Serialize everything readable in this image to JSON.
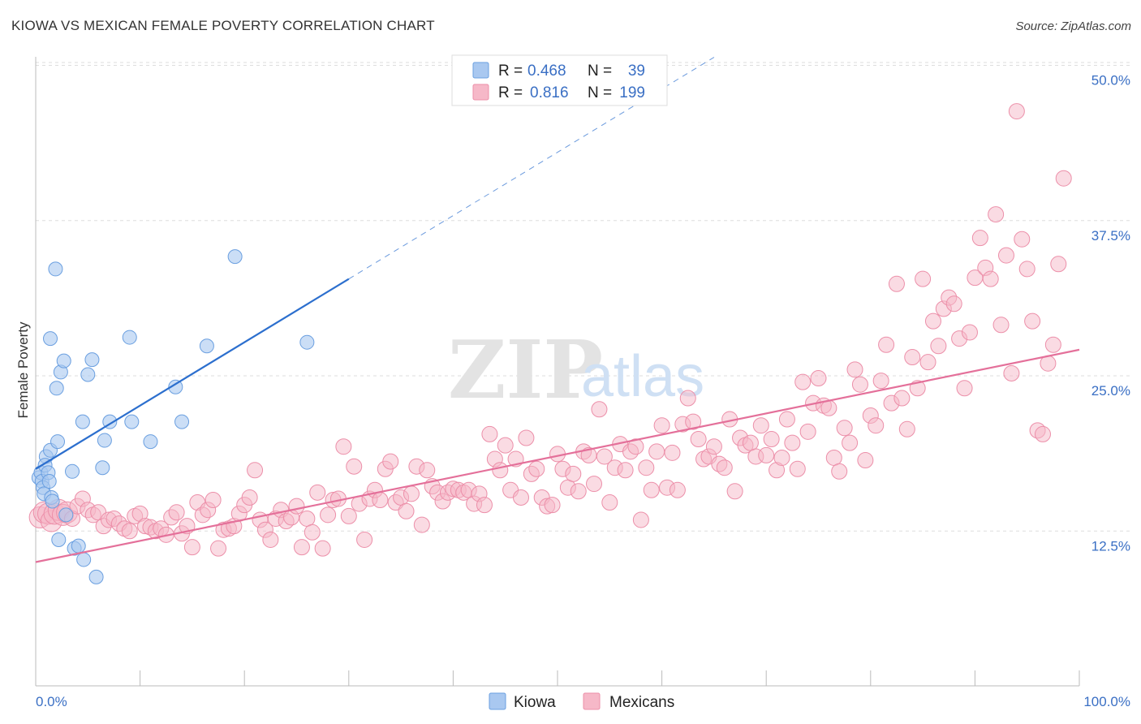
{
  "title": "KIOWA VS MEXICAN FEMALE POVERTY CORRELATION CHART",
  "source": "Source: ZipAtlas.com",
  "watermark": {
    "zip": "ZIP",
    "atlas": "atlas"
  },
  "colors": {
    "kiowa_fill": "#a9c8f0",
    "kiowa_stroke": "#6a9fe0",
    "kiowa_line": "#2c6fce",
    "mex_fill": "#f6b8c8",
    "mex_stroke": "#ec8fa9",
    "mex_line": "#e4709a",
    "axis_label": "#3a6fc4",
    "grid": "#dddddd"
  },
  "legend_top": [
    {
      "series": "Kiowa",
      "r_label": "R =",
      "r_value": "0.468",
      "n_label": "N =",
      "n_value": "39"
    },
    {
      "series": "Mexicans",
      "r_label": "R =",
      "r_value": "0.816",
      "n_label": "N =",
      "n_value": "199"
    }
  ],
  "legend_bottom": [
    "Kiowa",
    "Mexicans"
  ],
  "chart_data": {
    "type": "scatter",
    "title": "KIOWA VS MEXICAN FEMALE POVERTY CORRELATION CHART",
    "xlabel": "",
    "ylabel": "Female Poverty",
    "xlim": [
      0,
      100
    ],
    "ylim": [
      0,
      52
    ],
    "x_tick_labels": [
      "0.0%",
      "100.0%"
    ],
    "y_ticks": [
      12.5,
      25.0,
      37.5,
      50.0
    ],
    "y_tick_labels": [
      "12.5%",
      "25.0%",
      "37.5%",
      "50.0%"
    ],
    "grid": true,
    "legend_placement": "top-center",
    "series": [
      {
        "name": "Kiowa",
        "trend": {
          "x0": 0,
          "y0": 17.5,
          "x1": 30,
          "y1": 32.8,
          "dash_to_x": 65
        },
        "points": [
          [
            0.3,
            16.8
          ],
          [
            0.5,
            17.2
          ],
          [
            0.6,
            16.5
          ],
          [
            0.7,
            16.0
          ],
          [
            0.8,
            15.5
          ],
          [
            1.0,
            18.5
          ],
          [
            0.9,
            17.8
          ],
          [
            1.2,
            17.2
          ],
          [
            1.3,
            16.5
          ],
          [
            1.4,
            19.0
          ],
          [
            1.5,
            15.2
          ],
          [
            1.6,
            14.9
          ],
          [
            1.4,
            28.0
          ],
          [
            1.9,
            33.6
          ],
          [
            2.0,
            24.0
          ],
          [
            2.1,
            19.7
          ],
          [
            2.2,
            11.8
          ],
          [
            2.4,
            25.3
          ],
          [
            2.7,
            26.2
          ],
          [
            2.9,
            13.8
          ],
          [
            3.5,
            17.3
          ],
          [
            3.7,
            11.1
          ],
          [
            4.1,
            11.3
          ],
          [
            4.6,
            10.2
          ],
          [
            4.5,
            21.3
          ],
          [
            5.0,
            25.1
          ],
          [
            5.4,
            26.3
          ],
          [
            5.8,
            8.8
          ],
          [
            6.4,
            17.6
          ],
          [
            6.6,
            19.8
          ],
          [
            7.1,
            21.3
          ],
          [
            9.0,
            28.1
          ],
          [
            9.2,
            21.3
          ],
          [
            11.0,
            19.7
          ],
          [
            13.4,
            24.1
          ],
          [
            14.0,
            21.3
          ],
          [
            16.4,
            27.4
          ],
          [
            19.1,
            34.6
          ],
          [
            26.0,
            27.7
          ]
        ]
      },
      {
        "name": "Mexicans",
        "trend": {
          "x0": 0,
          "y0": 10.0,
          "x1": 100,
          "y1": 27.1
        },
        "points": [
          [
            0.4,
            13.6
          ],
          [
            0.8,
            14.0
          ],
          [
            1.2,
            13.9
          ],
          [
            1.5,
            13.3
          ],
          [
            1.8,
            13.9
          ],
          [
            2.2,
            14.2
          ],
          [
            2.6,
            13.8
          ],
          [
            3.0,
            14.0
          ],
          [
            3.5,
            13.5
          ],
          [
            4.0,
            14.5
          ],
          [
            4.5,
            15.1
          ],
          [
            5.0,
            14.2
          ],
          [
            5.5,
            13.8
          ],
          [
            6.0,
            14.0
          ],
          [
            6.5,
            12.9
          ],
          [
            7.0,
            13.4
          ],
          [
            7.5,
            13.5
          ],
          [
            8.0,
            13.1
          ],
          [
            8.5,
            12.7
          ],
          [
            9.0,
            12.5
          ],
          [
            9.5,
            13.7
          ],
          [
            10.0,
            13.9
          ],
          [
            10.5,
            12.9
          ],
          [
            11.0,
            12.8
          ],
          [
            11.5,
            12.5
          ],
          [
            12.0,
            12.7
          ],
          [
            12.5,
            12.2
          ],
          [
            13.0,
            13.6
          ],
          [
            13.5,
            14.0
          ],
          [
            14.0,
            12.3
          ],
          [
            14.5,
            12.9
          ],
          [
            15.0,
            11.2
          ],
          [
            15.5,
            14.8
          ],
          [
            16.0,
            13.8
          ],
          [
            16.5,
            14.2
          ],
          [
            17.0,
            15.0
          ],
          [
            17.5,
            11.1
          ],
          [
            18.0,
            12.6
          ],
          [
            18.5,
            12.7
          ],
          [
            19.0,
            12.9
          ],
          [
            19.5,
            13.9
          ],
          [
            20.0,
            14.6
          ],
          [
            20.5,
            15.2
          ],
          [
            21.0,
            17.4
          ],
          [
            21.5,
            13.4
          ],
          [
            22.0,
            12.6
          ],
          [
            22.5,
            11.8
          ],
          [
            23.0,
            13.5
          ],
          [
            23.5,
            14.2
          ],
          [
            24.0,
            13.3
          ],
          [
            24.5,
            13.6
          ],
          [
            25.0,
            14.5
          ],
          [
            25.5,
            11.2
          ],
          [
            26.0,
            13.5
          ],
          [
            26.5,
            12.4
          ],
          [
            27.0,
            15.6
          ],
          [
            27.5,
            11.1
          ],
          [
            28.0,
            13.8
          ],
          [
            28.5,
            15.0
          ],
          [
            29.0,
            15.1
          ],
          [
            29.5,
            19.3
          ],
          [
            30.0,
            13.7
          ],
          [
            30.5,
            17.7
          ],
          [
            31.0,
            14.7
          ],
          [
            31.5,
            11.8
          ],
          [
            32.0,
            15.1
          ],
          [
            32.5,
            15.8
          ],
          [
            33.0,
            15.0
          ],
          [
            33.5,
            17.5
          ],
          [
            34.0,
            18.1
          ],
          [
            34.5,
            14.8
          ],
          [
            35.0,
            15.2
          ],
          [
            35.5,
            14.1
          ],
          [
            36.0,
            15.5
          ],
          [
            36.5,
            17.7
          ],
          [
            37.0,
            13.0
          ],
          [
            37.5,
            17.4
          ],
          [
            38.0,
            16.1
          ],
          [
            38.5,
            15.6
          ],
          [
            39.0,
            14.9
          ],
          [
            39.5,
            15.6
          ],
          [
            40.0,
            15.9
          ],
          [
            40.5,
            15.8
          ],
          [
            41.0,
            15.6
          ],
          [
            41.5,
            15.8
          ],
          [
            42.0,
            14.7
          ],
          [
            42.5,
            15.5
          ],
          [
            43.0,
            14.6
          ],
          [
            43.5,
            20.3
          ],
          [
            44.0,
            18.3
          ],
          [
            44.5,
            17.4
          ],
          [
            45.0,
            19.4
          ],
          [
            45.5,
            15.8
          ],
          [
            46.0,
            18.3
          ],
          [
            46.5,
            15.2
          ],
          [
            47.0,
            20.0
          ],
          [
            47.5,
            17.1
          ],
          [
            48.0,
            17.5
          ],
          [
            48.5,
            15.2
          ],
          [
            49.0,
            14.5
          ],
          [
            49.5,
            14.6
          ],
          [
            50.0,
            18.7
          ],
          [
            50.5,
            17.5
          ],
          [
            51.0,
            16.0
          ],
          [
            51.5,
            17.1
          ],
          [
            52.0,
            15.7
          ],
          [
            52.5,
            18.9
          ],
          [
            53.0,
            18.6
          ],
          [
            53.5,
            16.3
          ],
          [
            54.0,
            22.3
          ],
          [
            54.5,
            18.5
          ],
          [
            55.0,
            14.8
          ],
          [
            55.5,
            17.6
          ],
          [
            56.0,
            19.5
          ],
          [
            56.5,
            17.4
          ],
          [
            57.0,
            18.9
          ],
          [
            57.5,
            19.3
          ],
          [
            58.0,
            13.4
          ],
          [
            58.5,
            17.6
          ],
          [
            59.0,
            15.8
          ],
          [
            59.5,
            18.9
          ],
          [
            60.0,
            21.0
          ],
          [
            60.5,
            16.0
          ],
          [
            61.0,
            18.8
          ],
          [
            61.5,
            15.8
          ],
          [
            62.0,
            21.1
          ],
          [
            62.5,
            23.2
          ],
          [
            63.0,
            21.3
          ],
          [
            63.5,
            19.9
          ],
          [
            64.0,
            18.3
          ],
          [
            64.5,
            18.5
          ],
          [
            65.0,
            19.3
          ],
          [
            65.5,
            17.9
          ],
          [
            66.0,
            17.6
          ],
          [
            66.5,
            21.5
          ],
          [
            67.0,
            15.7
          ],
          [
            67.5,
            20.0
          ],
          [
            68.0,
            19.4
          ],
          [
            68.5,
            19.6
          ],
          [
            69.0,
            18.5
          ],
          [
            69.5,
            21.0
          ],
          [
            70.0,
            18.6
          ],
          [
            70.5,
            19.9
          ],
          [
            71.0,
            17.4
          ],
          [
            71.5,
            18.4
          ],
          [
            72.0,
            21.5
          ],
          [
            72.5,
            19.6
          ],
          [
            73.0,
            17.5
          ],
          [
            73.5,
            24.5
          ],
          [
            74.0,
            20.5
          ],
          [
            74.5,
            22.8
          ],
          [
            75.0,
            24.8
          ],
          [
            75.5,
            22.6
          ],
          [
            76.0,
            22.4
          ],
          [
            76.5,
            18.4
          ],
          [
            77.0,
            17.3
          ],
          [
            77.5,
            20.8
          ],
          [
            78.0,
            19.6
          ],
          [
            78.5,
            25.5
          ],
          [
            79.0,
            24.3
          ],
          [
            79.5,
            18.2
          ],
          [
            80.0,
            21.8
          ],
          [
            80.5,
            21.0
          ],
          [
            81.0,
            24.6
          ],
          [
            81.5,
            27.5
          ],
          [
            82.0,
            22.8
          ],
          [
            82.5,
            32.4
          ],
          [
            83.0,
            23.2
          ],
          [
            83.5,
            20.7
          ],
          [
            84.0,
            26.5
          ],
          [
            84.5,
            24.0
          ],
          [
            85.0,
            32.8
          ],
          [
            85.5,
            26.1
          ],
          [
            86.0,
            29.4
          ],
          [
            86.5,
            27.4
          ],
          [
            87.0,
            30.4
          ],
          [
            87.5,
            31.3
          ],
          [
            88.0,
            30.8
          ],
          [
            88.5,
            28.0
          ],
          [
            89.0,
            24.0
          ],
          [
            89.5,
            28.5
          ],
          [
            90.0,
            32.9
          ],
          [
            90.5,
            36.1
          ],
          [
            91.0,
            33.7
          ],
          [
            91.5,
            32.8
          ],
          [
            92.0,
            38.0
          ],
          [
            92.5,
            29.1
          ],
          [
            93.0,
            34.7
          ],
          [
            93.5,
            25.2
          ],
          [
            94.0,
            46.3
          ],
          [
            94.5,
            36.0
          ],
          [
            95.0,
            33.6
          ],
          [
            95.5,
            29.4
          ],
          [
            96.0,
            20.6
          ],
          [
            96.5,
            20.3
          ],
          [
            97.0,
            26.0
          ],
          [
            97.5,
            27.5
          ],
          [
            98.0,
            34.0
          ],
          [
            98.5,
            40.9
          ]
        ]
      }
    ]
  }
}
